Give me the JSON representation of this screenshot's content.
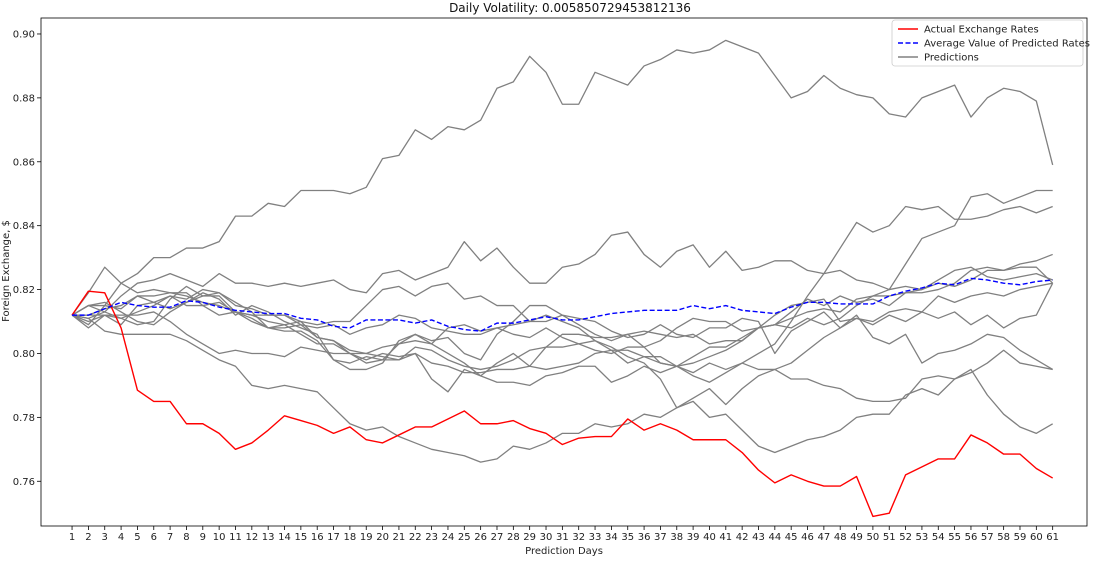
{
  "chart_data": {
    "type": "line",
    "title": "Daily Volatility: 0.005850729453812136",
    "xlabel": "Prediction Days",
    "ylabel": "Foreign Exchange, $",
    "x": [
      1,
      2,
      3,
      4,
      5,
      6,
      7,
      8,
      9,
      10,
      11,
      12,
      13,
      14,
      15,
      16,
      17,
      18,
      19,
      20,
      21,
      22,
      23,
      24,
      25,
      26,
      27,
      28,
      29,
      30,
      31,
      32,
      33,
      34,
      35,
      36,
      37,
      38,
      39,
      40,
      41,
      42,
      43,
      44,
      45,
      46,
      47,
      48,
      49,
      50,
      51,
      52,
      53,
      54,
      55,
      56,
      57,
      58,
      59,
      60,
      61
    ],
    "xlim": [
      -0.9,
      63.1
    ],
    "ylim": [
      0.746,
      0.905
    ],
    "yticks": [
      0.76,
      0.78,
      0.8,
      0.82,
      0.84,
      0.86,
      0.88,
      0.9
    ],
    "ytick_labels": [
      "0.76",
      "0.78",
      "0.80",
      "0.82",
      "0.84",
      "0.86",
      "0.88",
      "0.90"
    ],
    "grid": false,
    "legend_position": "top-right",
    "legend": [
      {
        "label": "Actual Exchange Rates",
        "color": "#ff0000",
        "style": "solid"
      },
      {
        "label": "Average Value of Predicted Rates",
        "color": "#0000ff",
        "style": "dashed"
      },
      {
        "label": "Predictions",
        "color": "#808080",
        "style": "solid"
      }
    ],
    "actual": [
      0.812,
      0.8195,
      0.819,
      0.808,
      0.7885,
      0.785,
      0.785,
      0.778,
      0.778,
      0.775,
      0.77,
      0.772,
      0.776,
      0.7805,
      0.779,
      0.7775,
      0.775,
      0.777,
      0.773,
      0.772,
      0.7745,
      0.777,
      0.777,
      0.7795,
      0.782,
      0.778,
      0.778,
      0.779,
      0.7765,
      0.775,
      0.7715,
      0.7735,
      0.774,
      0.774,
      0.7795,
      0.776,
      0.778,
      0.776,
      0.773,
      0.773,
      0.773,
      0.769,
      0.7635,
      0.7595,
      0.762,
      0.76,
      0.7585,
      0.7585,
      0.7615,
      0.749,
      0.75,
      0.762,
      0.7645,
      0.767,
      0.767,
      0.7745,
      0.772,
      0.7685,
      0.7685,
      0.764,
      0.761
    ],
    "average": [
      0.812,
      0.812,
      0.814,
      0.816,
      0.815,
      0.8145,
      0.8145,
      0.8165,
      0.816,
      0.8145,
      0.8135,
      0.813,
      0.8125,
      0.8125,
      0.811,
      0.8105,
      0.8085,
      0.808,
      0.8105,
      0.8105,
      0.8105,
      0.8095,
      0.8105,
      0.8085,
      0.8075,
      0.807,
      0.8095,
      0.8095,
      0.8105,
      0.8115,
      0.8105,
      0.8105,
      0.8115,
      0.8125,
      0.813,
      0.8135,
      0.8135,
      0.8135,
      0.815,
      0.814,
      0.815,
      0.8135,
      0.813,
      0.8125,
      0.8145,
      0.816,
      0.816,
      0.8155,
      0.8155,
      0.8155,
      0.818,
      0.8195,
      0.8205,
      0.822,
      0.8215,
      0.8235,
      0.823,
      0.822,
      0.8215,
      0.8225,
      0.823
    ],
    "predictions": [
      {
        "values": [
          0.812,
          0.815,
          0.813,
          0.818,
          0.822,
          0.823,
          0.825,
          0.823,
          0.821,
          0.825,
          0.822,
          0.822,
          0.821,
          0.822,
          0.821,
          0.822,
          0.823,
          0.82,
          0.819,
          0.825,
          0.826,
          0.823,
          0.825,
          0.827,
          0.835,
          0.829,
          0.833,
          0.827,
          0.822,
          0.822,
          0.827,
          0.828,
          0.831,
          0.837,
          0.838,
          0.831,
          0.827,
          0.832,
          0.834,
          0.827,
          0.832,
          0.826,
          0.827,
          0.829,
          0.829,
          0.826,
          0.825,
          0.826,
          0.823,
          0.822,
          0.82,
          0.828,
          0.836,
          0.838,
          0.84,
          0.849,
          0.85,
          0.847,
          0.849,
          0.851,
          0.851
        ]
      },
      {
        "values": [
          0.812,
          0.809,
          0.815,
          0.822,
          0.825,
          0.83,
          0.83,
          0.833,
          0.833,
          0.835,
          0.843,
          0.843,
          0.847,
          0.846,
          0.851,
          0.851,
          0.851,
          0.85,
          0.852,
          0.861,
          0.862,
          0.87,
          0.867,
          0.871,
          0.87,
          0.873,
          0.883,
          0.885,
          0.893,
          0.888,
          0.878,
          0.878,
          0.888,
          0.886,
          0.884,
          0.89,
          0.892,
          0.895,
          0.894,
          0.895,
          0.898,
          0.896,
          0.894,
          0.887,
          0.88,
          0.882,
          0.887,
          0.883,
          0.881,
          0.88,
          0.875,
          0.874,
          0.88,
          0.882,
          0.884,
          0.874,
          0.88,
          0.883,
          0.882,
          0.879,
          0.859
        ]
      },
      {
        "values": [
          0.812,
          0.819,
          0.827,
          0.822,
          0.819,
          0.82,
          0.819,
          0.819,
          0.815,
          0.812,
          0.813,
          0.81,
          0.808,
          0.809,
          0.806,
          0.803,
          0.803,
          0.8,
          0.798,
          0.8,
          0.799,
          0.8,
          0.797,
          0.796,
          0.794,
          0.794,
          0.795,
          0.795,
          0.796,
          0.795,
          0.796,
          0.797,
          0.8,
          0.801,
          0.797,
          0.799,
          0.797,
          0.796,
          0.794,
          0.797,
          0.795,
          0.797,
          0.795,
          0.795,
          0.792,
          0.792,
          0.79,
          0.789,
          0.786,
          0.785,
          0.785,
          0.786,
          0.792,
          0.793,
          0.792,
          0.794,
          0.797,
          0.801,
          0.797,
          0.796,
          0.795
        ]
      },
      {
        "values": [
          0.812,
          0.81,
          0.812,
          0.811,
          0.809,
          0.81,
          0.817,
          0.821,
          0.818,
          0.818,
          0.813,
          0.812,
          0.81,
          0.809,
          0.81,
          0.805,
          0.804,
          0.801,
          0.8,
          0.799,
          0.798,
          0.8,
          0.792,
          0.788,
          0.795,
          0.793,
          0.791,
          0.791,
          0.79,
          0.793,
          0.794,
          0.796,
          0.796,
          0.791,
          0.793,
          0.796,
          0.794,
          0.796,
          0.799,
          0.802,
          0.802,
          0.805,
          0.808,
          0.809,
          0.813,
          0.817,
          0.815,
          0.818,
          0.816,
          0.817,
          0.815,
          0.819,
          0.819,
          0.82,
          0.822,
          0.826,
          0.827,
          0.826,
          0.827,
          0.827,
          0.822
        ]
      },
      {
        "values": [
          0.812,
          0.811,
          0.807,
          0.806,
          0.806,
          0.806,
          0.806,
          0.804,
          0.801,
          0.798,
          0.796,
          0.79,
          0.789,
          0.79,
          0.789,
          0.788,
          0.783,
          0.778,
          0.776,
          0.777,
          0.774,
          0.772,
          0.77,
          0.769,
          0.768,
          0.766,
          0.767,
          0.771,
          0.77,
          0.772,
          0.775,
          0.775,
          0.778,
          0.777,
          0.778,
          0.781,
          0.78,
          0.783,
          0.785,
          0.78,
          0.781,
          0.776,
          0.771,
          0.769,
          0.771,
          0.773,
          0.774,
          0.776,
          0.78,
          0.781,
          0.781,
          0.787,
          0.789,
          0.787,
          0.792,
          0.795,
          0.787,
          0.781,
          0.777,
          0.775,
          0.778
        ]
      },
      {
        "values": [
          0.812,
          0.808,
          0.812,
          0.809,
          0.815,
          0.816,
          0.818,
          0.817,
          0.82,
          0.819,
          0.815,
          0.814,
          0.812,
          0.812,
          0.81,
          0.809,
          0.81,
          0.81,
          0.815,
          0.82,
          0.821,
          0.818,
          0.821,
          0.822,
          0.817,
          0.818,
          0.815,
          0.815,
          0.81,
          0.81,
          0.812,
          0.809,
          0.806,
          0.804,
          0.806,
          0.807,
          0.806,
          0.805,
          0.806,
          0.803,
          0.804,
          0.804,
          0.808,
          0.812,
          0.815,
          0.816,
          0.817,
          0.81,
          0.811,
          0.809,
          0.812,
          0.81,
          0.813,
          0.811,
          0.813,
          0.809,
          0.812,
          0.808,
          0.811,
          0.812,
          0.822
        ]
      },
      {
        "values": [
          0.812,
          0.815,
          0.816,
          0.813,
          0.81,
          0.809,
          0.813,
          0.816,
          0.819,
          0.817,
          0.812,
          0.815,
          0.813,
          0.81,
          0.808,
          0.806,
          0.798,
          0.795,
          0.795,
          0.797,
          0.804,
          0.806,
          0.803,
          0.808,
          0.809,
          0.807,
          0.808,
          0.806,
          0.805,
          0.808,
          0.805,
          0.803,
          0.801,
          0.8,
          0.802,
          0.802,
          0.804,
          0.808,
          0.811,
          0.81,
          0.81,
          0.807,
          0.808,
          0.809,
          0.811,
          0.813,
          0.814,
          0.813,
          0.817,
          0.818,
          0.818,
          0.819,
          0.82,
          0.822,
          0.821,
          0.823,
          0.826,
          0.826,
          0.828,
          0.829,
          0.831
        ]
      },
      {
        "values": [
          0.812,
          0.815,
          0.815,
          0.814,
          0.818,
          0.816,
          0.814,
          0.816,
          0.818,
          0.819,
          0.816,
          0.813,
          0.808,
          0.807,
          0.807,
          0.804,
          0.798,
          0.797,
          0.799,
          0.798,
          0.803,
          0.806,
          0.804,
          0.805,
          0.8,
          0.798,
          0.806,
          0.81,
          0.815,
          0.815,
          0.812,
          0.811,
          0.81,
          0.807,
          0.805,
          0.806,
          0.809,
          0.806,
          0.805,
          0.808,
          0.808,
          0.811,
          0.81,
          0.8,
          0.807,
          0.81,
          0.813,
          0.808,
          0.812,
          0.805,
          0.803,
          0.806,
          0.797,
          0.8,
          0.801,
          0.803,
          0.806,
          0.805,
          0.801,
          0.798,
          0.795
        ]
      },
      {
        "values": [
          0.812,
          0.811,
          0.813,
          0.811,
          0.813,
          0.815,
          0.818,
          0.815,
          0.815,
          0.816,
          0.813,
          0.812,
          0.812,
          0.812,
          0.809,
          0.808,
          0.809,
          0.806,
          0.808,
          0.809,
          0.812,
          0.811,
          0.808,
          0.807,
          0.806,
          0.806,
          0.808,
          0.809,
          0.81,
          0.812,
          0.81,
          0.808,
          0.804,
          0.802,
          0.799,
          0.797,
          0.792,
          0.783,
          0.786,
          0.789,
          0.784,
          0.789,
          0.793,
          0.795,
          0.797,
          0.801,
          0.805,
          0.808,
          0.811,
          0.81,
          0.813,
          0.814,
          0.813,
          0.818,
          0.816,
          0.818,
          0.819,
          0.818,
          0.82,
          0.821,
          0.822
        ]
      },
      {
        "values": [
          0.812,
          0.812,
          0.814,
          0.815,
          0.818,
          0.818,
          0.819,
          0.818,
          0.816,
          0.815,
          0.813,
          0.811,
          0.808,
          0.808,
          0.809,
          0.805,
          0.804,
          0.8,
          0.8,
          0.802,
          0.803,
          0.804,
          0.803,
          0.8,
          0.797,
          0.793,
          0.797,
          0.8,
          0.796,
          0.802,
          0.806,
          0.806,
          0.805,
          0.805,
          0.806,
          0.802,
          0.797,
          0.796,
          0.793,
          0.791,
          0.794,
          0.797,
          0.8,
          0.803,
          0.81,
          0.818,
          0.825,
          0.833,
          0.841,
          0.838,
          0.84,
          0.846,
          0.845,
          0.846,
          0.842,
          0.842,
          0.843,
          0.845,
          0.846,
          0.844,
          0.846
        ]
      },
      {
        "values": [
          0.812,
          0.812,
          0.812,
          0.812,
          0.812,
          0.813,
          0.81,
          0.806,
          0.803,
          0.8,
          0.801,
          0.8,
          0.8,
          0.799,
          0.802,
          0.801,
          0.8,
          0.8,
          0.797,
          0.798,
          0.798,
          0.802,
          0.801,
          0.798,
          0.796,
          0.795,
          0.796,
          0.798,
          0.801,
          0.802,
          0.802,
          0.803,
          0.804,
          0.801,
          0.801,
          0.799,
          0.799,
          0.796,
          0.797,
          0.799,
          0.801,
          0.804,
          0.808,
          0.809,
          0.808,
          0.811,
          0.809,
          0.811,
          0.815,
          0.818,
          0.82,
          0.821,
          0.82,
          0.823,
          0.826,
          0.827,
          0.824,
          0.823,
          0.824,
          0.825,
          0.823
        ]
      }
    ]
  }
}
